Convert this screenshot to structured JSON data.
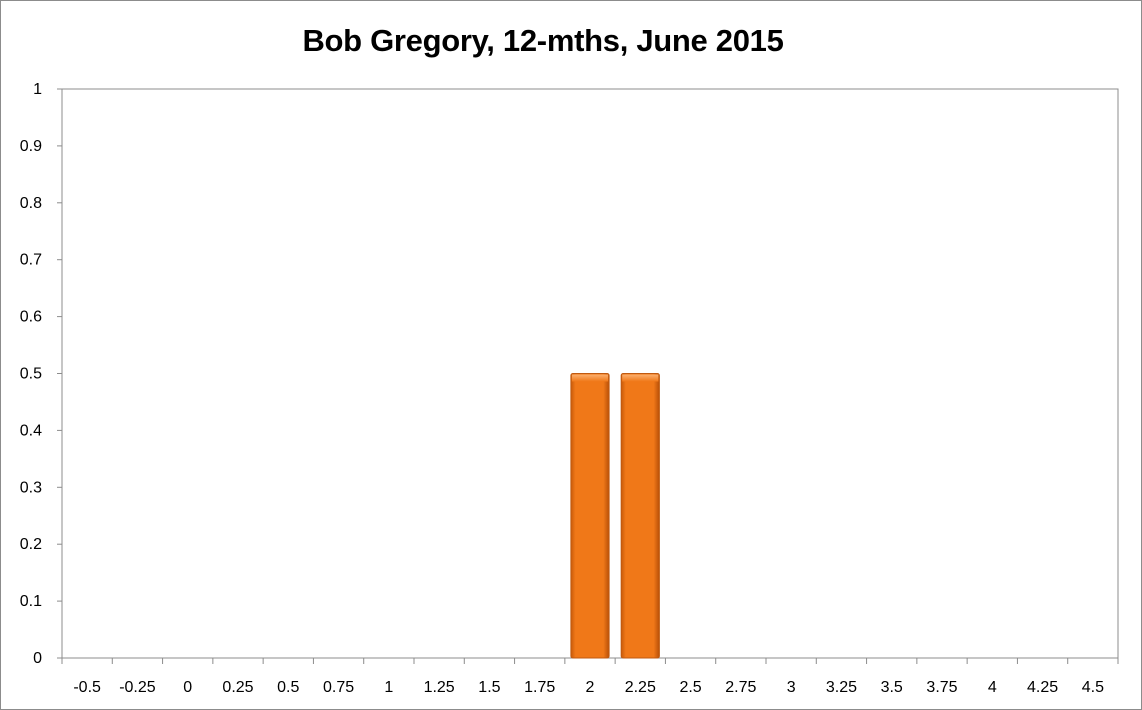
{
  "chart_data": {
    "type": "bar",
    "title": "Bob Gregory, 12-mths, June 2015",
    "xlabel": "",
    "ylabel": "",
    "categories": [
      "-0.5",
      "-0.25",
      "0",
      "0.25",
      "0.5",
      "0.75",
      "1",
      "1.25",
      "1.5",
      "1.75",
      "2",
      "2.25",
      "2.5",
      "2.75",
      "3",
      "3.25",
      "3.5",
      "3.75",
      "4",
      "4.25",
      "4.5"
    ],
    "values": [
      0,
      0,
      0,
      0,
      0,
      0,
      0,
      0,
      0,
      0,
      0.5,
      0.5,
      0,
      0,
      0,
      0,
      0,
      0,
      0,
      0,
      0
    ],
    "ylim": [
      0,
      1
    ],
    "yticks": [
      "0",
      "0.1",
      "0.2",
      "0.3",
      "0.4",
      "0.5",
      "0.6",
      "0.7",
      "0.8",
      "0.9",
      "1"
    ],
    "grid": false,
    "legend": "none",
    "bar_color": "#f07818"
  }
}
